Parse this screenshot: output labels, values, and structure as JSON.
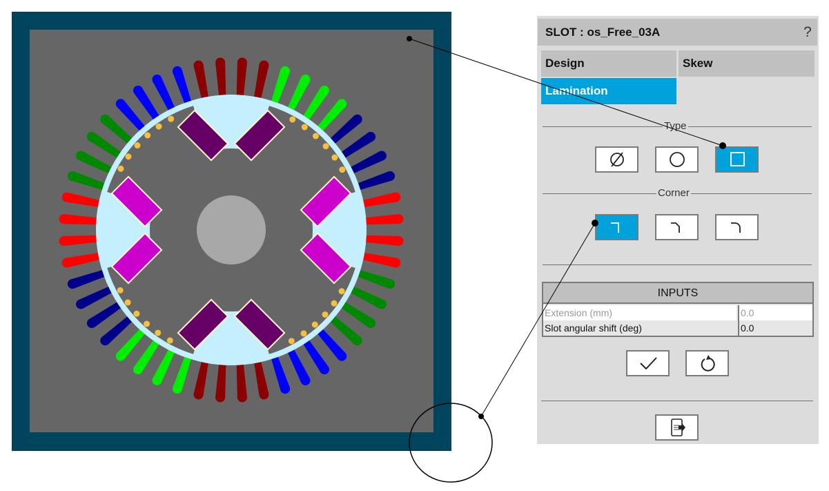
{
  "panel": {
    "title": "SLOT : os_Free_03A",
    "help_label": "?",
    "tabs": [
      {
        "label": "Design",
        "active": false
      },
      {
        "label": "Skew",
        "active": false
      },
      {
        "label": "Lamination",
        "active": true
      }
    ],
    "type_section": {
      "label": "Type",
      "options": [
        {
          "icon": "diameter-icon",
          "selected": false
        },
        {
          "icon": "circle-icon",
          "selected": false
        },
        {
          "icon": "square-icon",
          "selected": true
        }
      ]
    },
    "corner_section": {
      "label": "Corner",
      "options": [
        {
          "icon": "sharp-corner-icon",
          "selected": true
        },
        {
          "icon": "chamfer-corner-icon",
          "selected": false
        },
        {
          "icon": "round-corner-icon",
          "selected": false
        }
      ]
    },
    "inputs": {
      "header": "INPUTS",
      "rows": [
        {
          "label": "Extension (mm)",
          "value": "0.0",
          "disabled": true
        },
        {
          "label": "Slot angular shift (deg)",
          "value": "0.0",
          "disabled": false
        }
      ]
    },
    "actions": {
      "apply_icon": "check-icon",
      "reset_icon": "reset-icon",
      "export_icon": "export-icon"
    }
  },
  "motor": {
    "slot_count": 48,
    "slots_per_phase_group": 4,
    "phase_group_colors": [
      "#8b0000",
      "#00ee00",
      "#00008b",
      "#ff0000",
      "#008800",
      "#0000ff",
      "#8b0000",
      "#00ee00",
      "#00008b",
      "#ff0000",
      "#008800",
      "#0000ff"
    ],
    "colors": {
      "frame": "#00445e",
      "background": "#666666",
      "rotor": "#c4efff",
      "pocket": "#666666",
      "shaft": "#a8a8a8",
      "magnet_vertical_poles": "#660066",
      "magnet_horizontal_poles": "#cc00cc",
      "magnet_border": "#fff5c8",
      "bar_dot": "#f5c040"
    }
  }
}
